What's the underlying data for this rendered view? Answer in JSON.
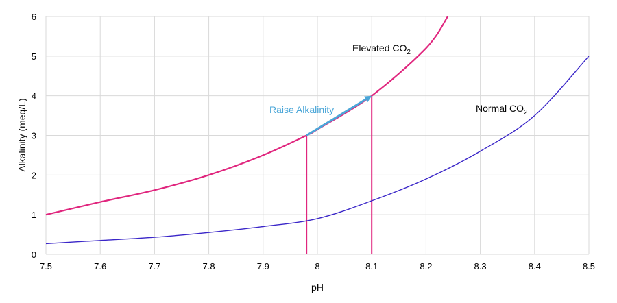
{
  "chart_data": {
    "type": "line",
    "title": "",
    "xlabel": "pH",
    "ylabel": "Alkalinity (meq/L)",
    "xlim": [
      7.5,
      8.5
    ],
    "ylim": [
      0,
      6
    ],
    "x_ticks": [
      "7.5",
      "7.6",
      "7.7",
      "7.8",
      "7.9",
      "8",
      "8.1",
      "8.2",
      "8.3",
      "8.4",
      "8.5"
    ],
    "y_ticks": [
      "0",
      "1",
      "2",
      "3",
      "4",
      "5",
      "6"
    ],
    "grid": true,
    "series": [
      {
        "name": "Elevated CO",
        "name_subscript": "2",
        "color": "#e0267e",
        "x": [
          7.5,
          7.6,
          7.7,
          7.8,
          7.9,
          7.98,
          8.0,
          8.1,
          8.2,
          8.24
        ],
        "y": [
          1.0,
          1.32,
          1.62,
          2.0,
          2.5,
          3.0,
          3.15,
          4.0,
          5.2,
          6.0
        ]
      },
      {
        "name": "Normal CO",
        "name_subscript": "2",
        "color": "#3a26c8",
        "x": [
          7.5,
          7.6,
          7.7,
          7.8,
          7.9,
          8.0,
          8.1,
          8.2,
          8.3,
          8.4,
          8.5
        ],
        "y": [
          0.27,
          0.35,
          0.43,
          0.55,
          0.7,
          0.9,
          1.35,
          1.9,
          2.6,
          3.5,
          5.0
        ]
      }
    ],
    "reference_lines": [
      {
        "x": 7.98,
        "y_top": 3.0,
        "color": "#e0267e"
      },
      {
        "x": 8.1,
        "y_top": 4.0,
        "color": "#e0267e"
      }
    ],
    "annotations": [
      {
        "text": "Raise Alkalinity",
        "color": "#4aa6d8",
        "from": [
          7.98,
          3.0
        ],
        "to": [
          8.1,
          4.0
        ]
      }
    ]
  }
}
